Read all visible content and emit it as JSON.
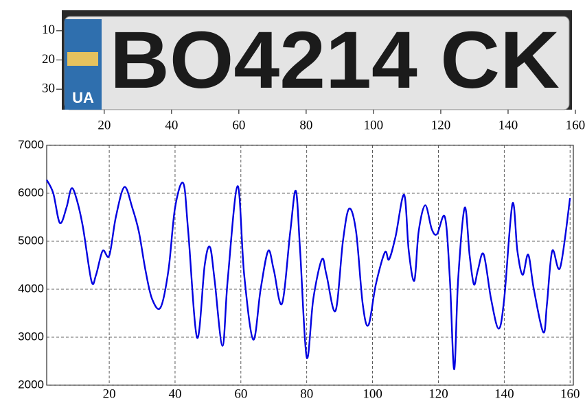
{
  "chart_data": [
    {
      "type": "image",
      "plate_region": "UA",
      "plate_number": "BO4214 CK",
      "xlim": [
        8,
        160
      ],
      "ylim": [
        3,
        37
      ],
      "xticks": [
        20,
        40,
        60,
        80,
        100,
        120,
        140,
        160
      ],
      "yticks": [
        10,
        20,
        30
      ]
    },
    {
      "type": "line",
      "x": [
        1,
        3,
        5,
        7,
        8.5,
        10,
        12,
        14.6,
        16,
        18,
        20,
        22,
        24.6,
        27,
        29,
        31,
        33,
        35.6,
        38,
        40,
        42.5,
        44,
        46.7,
        49,
        50.6,
        52,
        54.4,
        56,
        59,
        61,
        63.75,
        66,
        68.3,
        70,
        72.5,
        75,
        76.7,
        78,
        80,
        82,
        84.6,
        86,
        88.75,
        91,
        92.9,
        95,
        97,
        98.75,
        101,
        103.75,
        105,
        107,
        109.6,
        111,
        112.7,
        114,
        116,
        118,
        119.6,
        122,
        123.5,
        124.8,
        126,
        128,
        129.5,
        130.8,
        132,
        133.75,
        136,
        138.3,
        140,
        142.5,
        144,
        145.6,
        147.3,
        149,
        151.9,
        153,
        154.6,
        157,
        160
      ],
      "series": [
        {
          "color": "#0000e0",
          "values": [
            6280,
            6000,
            5380,
            5700,
            6100,
            5900,
            5300,
            4170,
            4300,
            4800,
            4700,
            5500,
            6130,
            5700,
            5200,
            4400,
            3800,
            3620,
            4400,
            5700,
            6210,
            5200,
            2990,
            4500,
            4880,
            4200,
            2820,
            4200,
            6150,
            4300,
            2950,
            4000,
            4800,
            4400,
            3700,
            5200,
            6050,
            4800,
            2580,
            3800,
            4620,
            4300,
            3550,
            5000,
            5680,
            5200,
            3700,
            3250,
            4100,
            4770,
            4620,
            5100,
            5970,
            4800,
            4180,
            5200,
            5750,
            5250,
            5150,
            5500,
            4200,
            2330,
            4200,
            5700,
            4700,
            4100,
            4400,
            4730,
            3800,
            3180,
            3800,
            5780,
            4800,
            4300,
            4720,
            4000,
            3100,
            3700,
            4800,
            4450,
            5900
          ]
        }
      ],
      "xlim": [
        1,
        161
      ],
      "ylim": [
        2000,
        7000
      ],
      "xticks": [
        20,
        40,
        60,
        80,
        100,
        120,
        140,
        160
      ],
      "yticks": [
        2000,
        3000,
        4000,
        5000,
        6000,
        7000
      ],
      "grid": true
    }
  ]
}
